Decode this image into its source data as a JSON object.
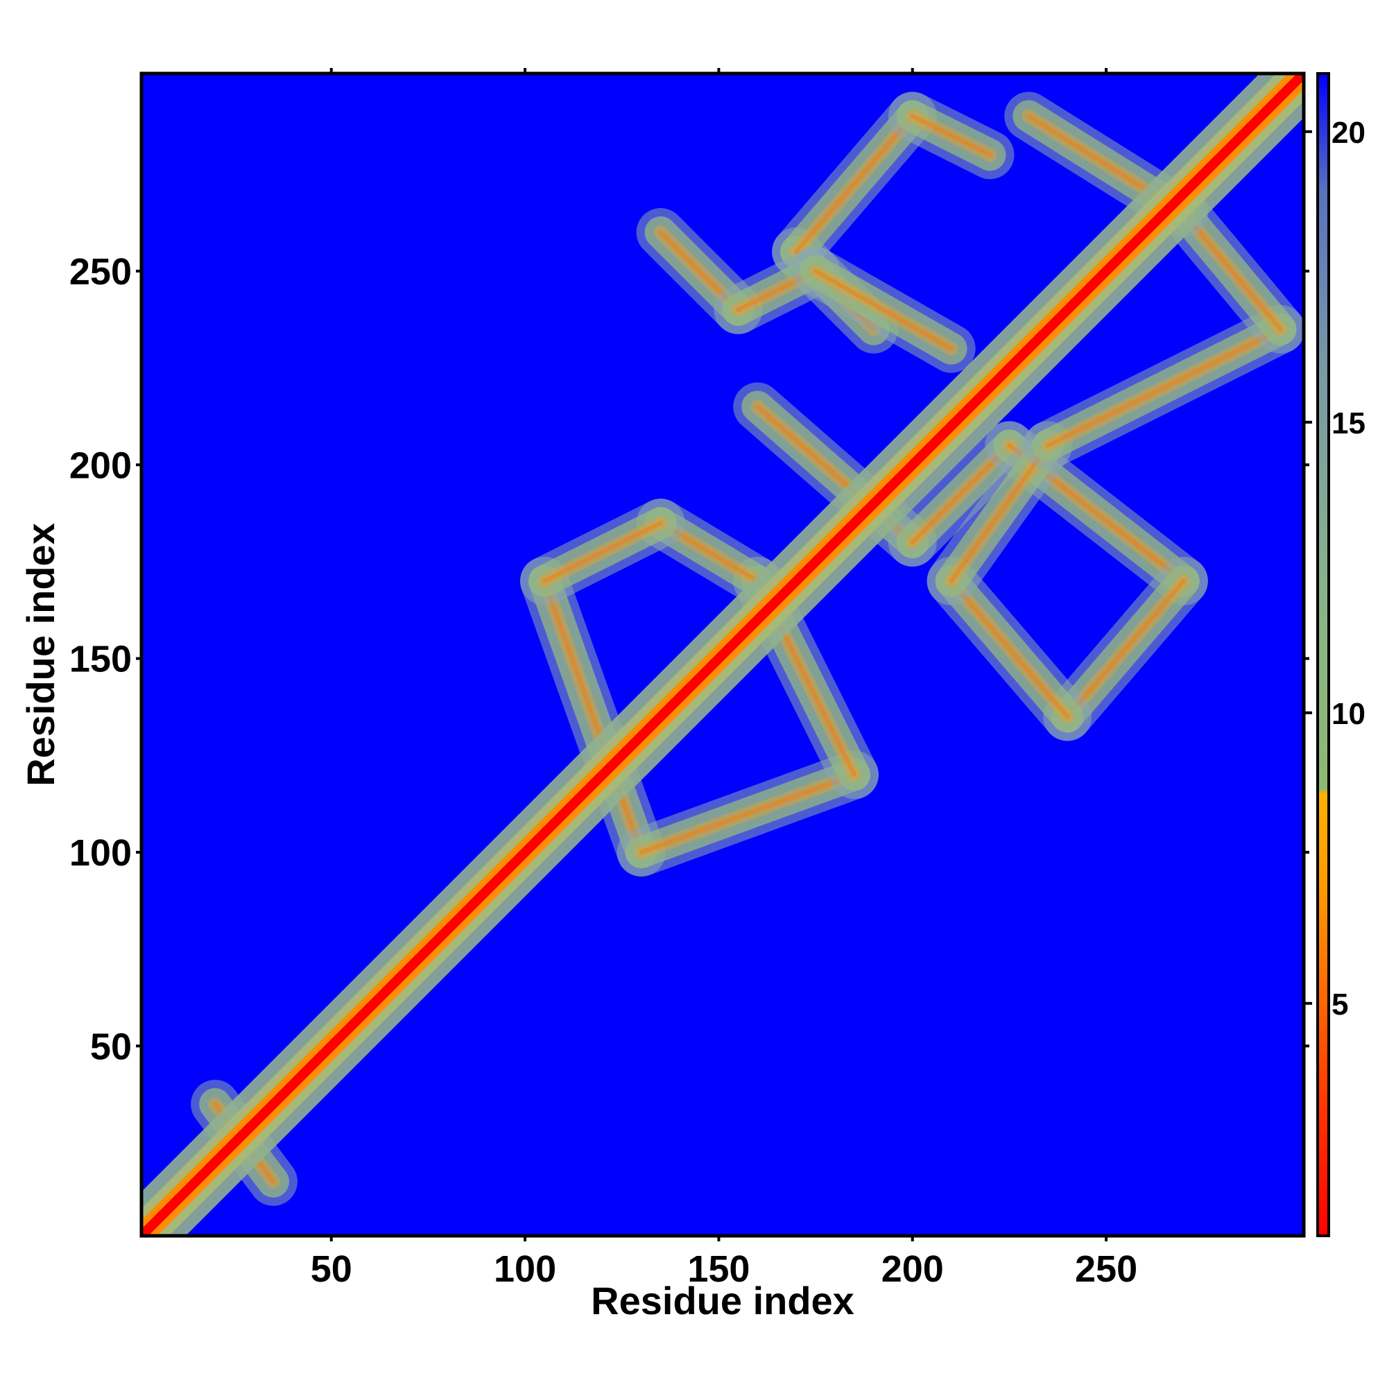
{
  "chart_data": {
    "type": "heatmap",
    "title": "",
    "xlabel": "Residue index",
    "ylabel": "Residue index",
    "xlim": [
      1,
      301
    ],
    "ylim": [
      1,
      301
    ],
    "x_ticks": [
      50,
      100,
      150,
      200,
      250
    ],
    "y_ticks": [
      50,
      100,
      150,
      200,
      250
    ],
    "colorbar": {
      "range": [
        1,
        21
      ],
      "ticks": [
        5,
        10,
        15,
        20
      ],
      "stops": [
        {
          "value": 1,
          "color": "#ff0000"
        },
        {
          "value": 4,
          "color": "#ff4a00"
        },
        {
          "value": 7,
          "color": "#ff9a00"
        },
        {
          "value": 8.6,
          "color": "#ffb000"
        },
        {
          "value": 8.7,
          "color": "#8fb873"
        },
        {
          "value": 12,
          "color": "#8ab28a"
        },
        {
          "value": 16,
          "color": "#7a98a5"
        },
        {
          "value": 19,
          "color": "#5a70c0"
        },
        {
          "value": 21,
          "color": "#0000ff"
        }
      ]
    },
    "background_color": "#0000ff",
    "diagonal": {
      "from": [
        1,
        1
      ],
      "to": [
        301,
        301
      ]
    },
    "contact_bands": [
      {
        "from": [
          105,
          170
        ],
        "to": [
          130,
          100
        ]
      },
      {
        "from": [
          130,
          100
        ],
        "to": [
          185,
          120
        ]
      },
      {
        "from": [
          185,
          120
        ],
        "to": [
          160,
          170
        ]
      },
      {
        "from": [
          160,
          170
        ],
        "to": [
          135,
          185
        ]
      },
      {
        "from": [
          135,
          185
        ],
        "to": [
          105,
          170
        ]
      },
      {
        "from": [
          160,
          215
        ],
        "to": [
          200,
          180
        ]
      },
      {
        "from": [
          200,
          180
        ],
        "to": [
          225,
          205
        ]
      },
      {
        "from": [
          225,
          205
        ],
        "to": [
          270,
          170
        ]
      },
      {
        "from": [
          270,
          170
        ],
        "to": [
          240,
          135
        ]
      },
      {
        "from": [
          240,
          135
        ],
        "to": [
          210,
          170
        ]
      },
      {
        "from": [
          210,
          170
        ],
        "to": [
          235,
          205
        ]
      },
      {
        "from": [
          235,
          205
        ],
        "to": [
          295,
          235
        ]
      },
      {
        "from": [
          295,
          235
        ],
        "to": [
          270,
          265
        ]
      },
      {
        "from": [
          270,
          265
        ],
        "to": [
          230,
          290
        ]
      },
      {
        "from": [
          190,
          235
        ],
        "to": [
          170,
          255
        ]
      },
      {
        "from": [
          170,
          255
        ],
        "to": [
          200,
          290
        ]
      },
      {
        "from": [
          200,
          290
        ],
        "to": [
          220,
          280
        ]
      },
      {
        "from": [
          135,
          260
        ],
        "to": [
          155,
          240
        ]
      },
      {
        "from": [
          155,
          240
        ],
        "to": [
          175,
          250
        ]
      },
      {
        "from": [
          175,
          250
        ],
        "to": [
          210,
          230
        ]
      },
      {
        "from": [
          20,
          35
        ],
        "to": [
          35,
          15
        ]
      }
    ]
  }
}
